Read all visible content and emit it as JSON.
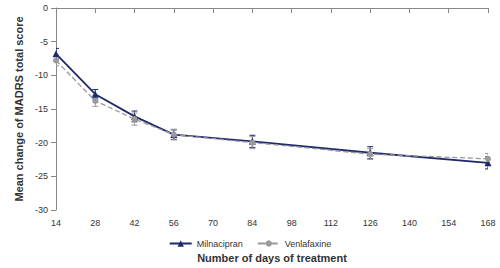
{
  "chart_data": {
    "type": "line",
    "x_label": "Number of days of treatment",
    "y_label": "Mean change of MADRS total score",
    "x": [
      14,
      28,
      42,
      56,
      84,
      126,
      168
    ],
    "series": [
      {
        "name": "Milnacipran",
        "color": "#1f2a6b",
        "marker": "triangle",
        "line_style": "solid",
        "values": [
          -6.8,
          -12.8,
          -16.1,
          -18.8,
          -19.8,
          -21.5,
          -23.0
        ],
        "errors": [
          0.8,
          0.7,
          0.8,
          0.7,
          0.9,
          0.9,
          0.9
        ]
      },
      {
        "name": "Venlafaxine",
        "color": "#9a9a9a",
        "marker": "circle",
        "line_style": "dashed",
        "values": [
          -7.8,
          -13.8,
          -16.5,
          -18.8,
          -20.0,
          -21.7,
          -22.4
        ],
        "errors": [
          0.8,
          0.8,
          0.9,
          0.8,
          0.9,
          0.8,
          0.8
        ]
      }
    ],
    "xlim": [
      14,
      168
    ],
    "xticks": [
      14,
      28,
      42,
      56,
      70,
      84,
      98,
      112,
      126,
      140,
      154,
      168
    ],
    "ylim": [
      -30,
      0
    ],
    "yticks": [
      -30,
      -25,
      -20,
      -15,
      -10,
      -5,
      0
    ],
    "grid": false,
    "legend": "bottom"
  }
}
